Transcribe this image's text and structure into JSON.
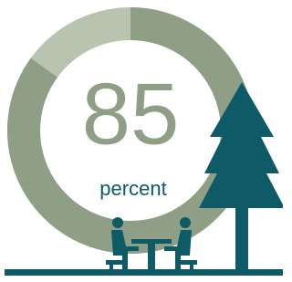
{
  "chart_data": {
    "type": "donut",
    "values": [
      85
    ],
    "value_labels": [
      "85"
    ],
    "unit_label": "percent",
    "color": "#8f9f86",
    "remainder_color": "#b8c4b0",
    "label_color": "#8f9f86",
    "unit_color": "#0e5a66"
  }
}
